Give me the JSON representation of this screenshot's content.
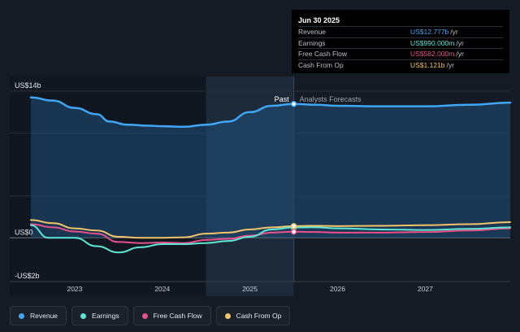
{
  "tooltip": {
    "date": "Jun 30 2025",
    "rows": [
      {
        "label": "Revenue",
        "value": "US$12.777b",
        "unit": "/yr",
        "color": "#3fa7f5"
      },
      {
        "label": "Earnings",
        "value": "US$990.000m",
        "unit": "/yr",
        "color": "#5ee6d6"
      },
      {
        "label": "Free Cash Flow",
        "value": "US$582.000m",
        "unit": "/yr",
        "color": "#e8508b"
      },
      {
        "label": "Cash From Op",
        "value": "US$1.121b",
        "unit": "/yr",
        "color": "#f2c46a"
      }
    ]
  },
  "markers": {
    "past": "Past",
    "forecast": "Analysts Forecasts"
  },
  "legend": [
    {
      "label": "Revenue",
      "color": "#3fa7f5"
    },
    {
      "label": "Earnings",
      "color": "#5ee6d6"
    },
    {
      "label": "Free Cash Flow",
      "color": "#e8508b"
    },
    {
      "label": "Cash From Op",
      "color": "#f2c46a"
    }
  ],
  "chart_data": {
    "type": "line",
    "y_tick_labels": [
      "US$14b",
      "US$0",
      "-US$2b"
    ],
    "y_ticks": [
      14,
      0,
      -2
    ],
    "ylim": [
      -2,
      14
    ],
    "xlim": [
      2022.5,
      2027.97
    ],
    "x_tick_labels": [
      "2023",
      "2024",
      "2025",
      "2026",
      "2027"
    ],
    "x_ticks": [
      2023,
      2024,
      2025,
      2026,
      2027
    ],
    "highlight_range": [
      2024.5,
      2025.5
    ],
    "divider_x": 2025.5,
    "grid": true,
    "series": [
      {
        "name": "Revenue",
        "color": "#3fa7f5",
        "fill": true,
        "points": [
          [
            2022.5,
            13.4
          ],
          [
            2022.75,
            13.1
          ],
          [
            2023.0,
            12.4
          ],
          [
            2023.25,
            11.8
          ],
          [
            2023.4,
            11.1
          ],
          [
            2023.6,
            10.8
          ],
          [
            2023.85,
            10.7
          ],
          [
            2024.0,
            10.65
          ],
          [
            2024.25,
            10.6
          ],
          [
            2024.5,
            10.8
          ],
          [
            2024.75,
            11.1
          ],
          [
            2025.0,
            12.0
          ],
          [
            2025.25,
            12.6
          ],
          [
            2025.5,
            12.777
          ],
          [
            2025.75,
            12.7
          ],
          [
            2026.0,
            12.6
          ],
          [
            2026.5,
            12.55
          ],
          [
            2027.0,
            12.55
          ],
          [
            2027.5,
            12.7
          ],
          [
            2027.97,
            12.9
          ]
        ]
      },
      {
        "name": "Earnings",
        "color": "#5ee6d6",
        "fill": false,
        "points": [
          [
            2022.5,
            1.2
          ],
          [
            2022.7,
            0.0
          ],
          [
            2023.0,
            0.0
          ],
          [
            2023.25,
            -0.8
          ],
          [
            2023.5,
            -1.4
          ],
          [
            2023.75,
            -0.9
          ],
          [
            2024.0,
            -0.6
          ],
          [
            2024.25,
            -0.6
          ],
          [
            2024.5,
            -0.5
          ],
          [
            2024.75,
            -0.3
          ],
          [
            2025.0,
            0.1
          ],
          [
            2025.25,
            0.8
          ],
          [
            2025.5,
            0.99
          ],
          [
            2025.75,
            1.0
          ],
          [
            2026.0,
            0.9
          ],
          [
            2026.5,
            0.8
          ],
          [
            2027.0,
            0.75
          ],
          [
            2027.5,
            0.85
          ],
          [
            2027.97,
            1.0
          ]
        ]
      },
      {
        "name": "Free Cash Flow",
        "color": "#e8508b",
        "fill": false,
        "points": [
          [
            2022.5,
            1.3
          ],
          [
            2022.75,
            1.0
          ],
          [
            2023.0,
            0.6
          ],
          [
            2023.25,
            0.4
          ],
          [
            2023.5,
            -0.4
          ],
          [
            2023.75,
            -0.5
          ],
          [
            2024.0,
            -0.45
          ],
          [
            2024.25,
            -0.5
          ],
          [
            2024.5,
            -0.2
          ],
          [
            2024.75,
            -0.1
          ],
          [
            2025.0,
            0.2
          ],
          [
            2025.25,
            0.5
          ],
          [
            2025.5,
            0.582
          ],
          [
            2025.75,
            0.55
          ],
          [
            2026.0,
            0.5
          ],
          [
            2026.5,
            0.5
          ],
          [
            2027.0,
            0.55
          ],
          [
            2027.5,
            0.7
          ],
          [
            2027.97,
            0.9
          ]
        ]
      },
      {
        "name": "Cash From Op",
        "color": "#f2c46a",
        "fill": false,
        "points": [
          [
            2022.5,
            1.7
          ],
          [
            2022.75,
            1.4
          ],
          [
            2023.0,
            0.9
          ],
          [
            2023.25,
            0.7
          ],
          [
            2023.5,
            0.1
          ],
          [
            2023.75,
            0.0
          ],
          [
            2024.0,
            0.0
          ],
          [
            2024.25,
            0.05
          ],
          [
            2024.5,
            0.4
          ],
          [
            2024.75,
            0.5
          ],
          [
            2025.0,
            0.8
          ],
          [
            2025.25,
            1.0
          ],
          [
            2025.5,
            1.121
          ],
          [
            2025.75,
            1.15
          ],
          [
            2026.0,
            1.12
          ],
          [
            2026.5,
            1.15
          ],
          [
            2027.0,
            1.2
          ],
          [
            2027.5,
            1.3
          ],
          [
            2027.97,
            1.5
          ]
        ]
      }
    ]
  }
}
